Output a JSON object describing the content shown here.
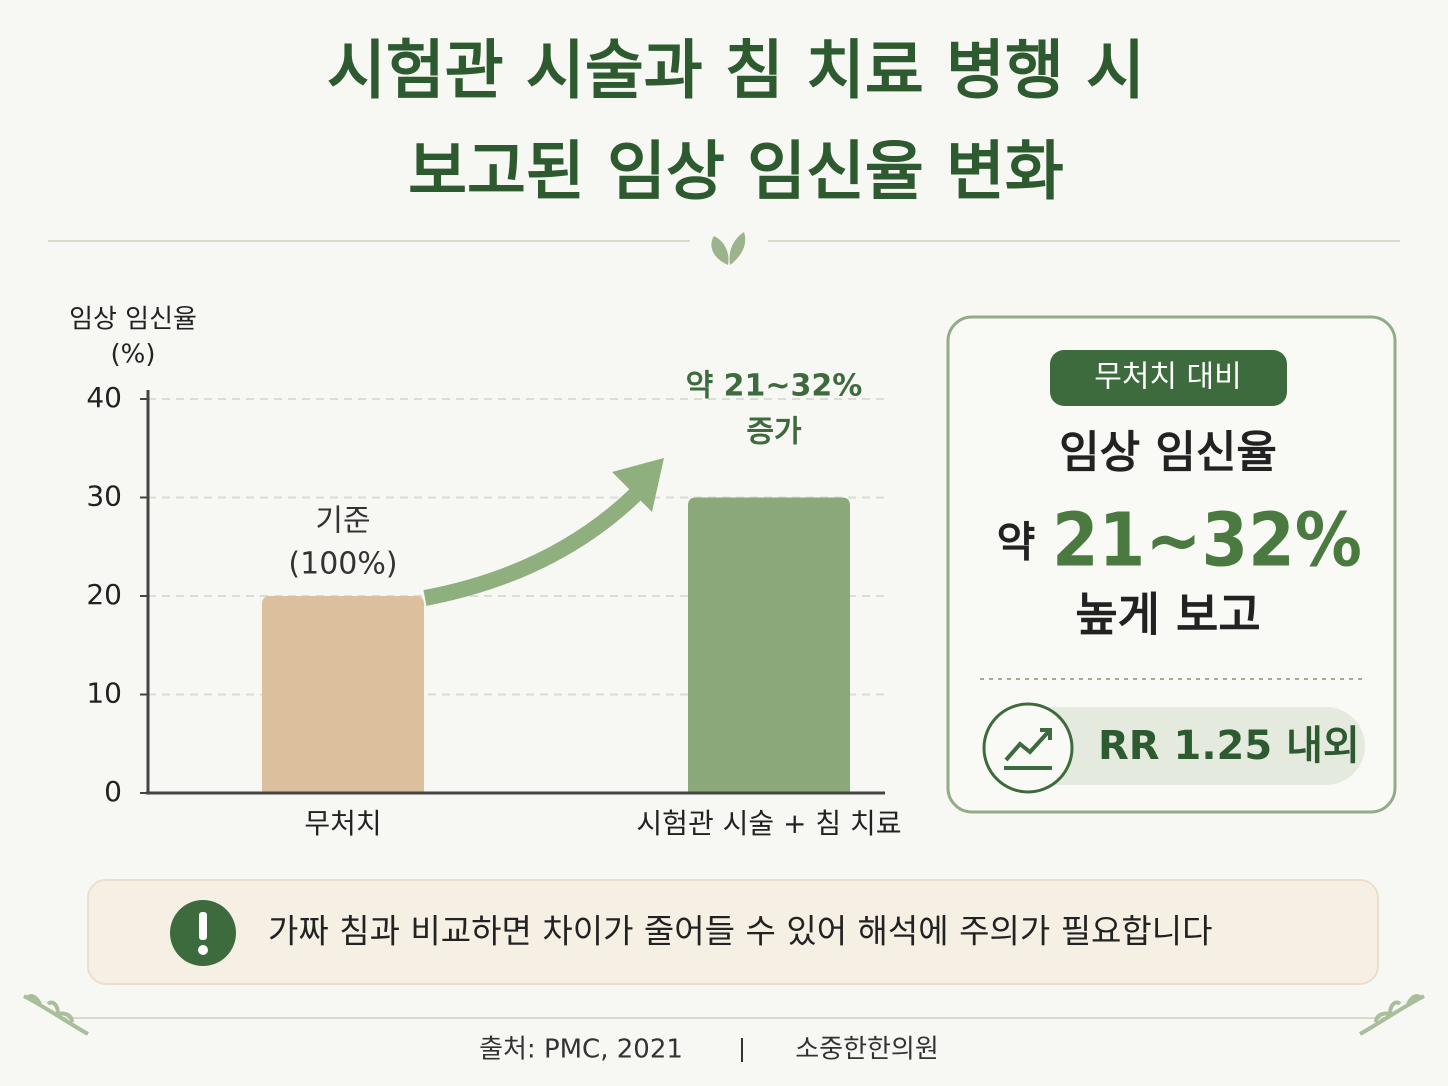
{
  "chart_data": {
    "type": "bar",
    "title_lines": [
      "시험관 시술과 침 치료 병행 시",
      "보고된 임상 임신율 변화"
    ],
    "ylabel_lines": [
      "임상 임신율",
      "(%)"
    ],
    "categories": [
      "무처치",
      "시험관 시술 + 침 치료"
    ],
    "values": [
      20,
      30
    ],
    "colors": [
      "#dcc09d",
      "#8aa87a"
    ],
    "ylim": [
      0,
      40
    ],
    "yticks": [
      0,
      10,
      20,
      30,
      40
    ],
    "grid": true,
    "annotations": [
      [
        "기준",
        "(100%)"
      ],
      [
        "약 21~32%",
        "증가"
      ]
    ]
  },
  "panel": {
    "badge": "무처치 대비",
    "line1": "임상 임신율",
    "prefix": "약",
    "highlight": "21~32%",
    "line3": "높게 보고",
    "stat": "RR 1.25 내외"
  },
  "note": "가짜 침과 비교하면 차이가 줄어들 수 있어 해석에 주의가 필요합니다",
  "footer": {
    "source": "출처: PMC, 2021",
    "brand": "소중한한의원"
  }
}
